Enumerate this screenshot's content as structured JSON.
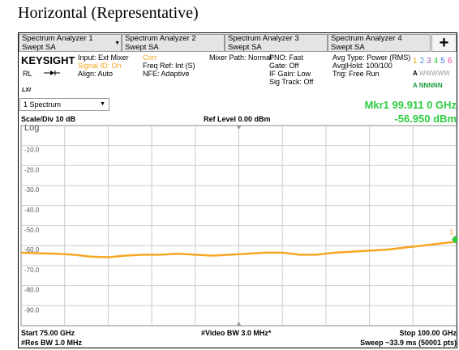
{
  "title": "Horizontal (Representative)",
  "tabs": [
    {
      "name": "Spectrum Analyzer 1",
      "mode": "Swept SA"
    },
    {
      "name": "Spectrum Analyzer 2",
      "mode": "Swept SA"
    },
    {
      "name": "Spectrum Analyzer 3",
      "mode": "Swept SA"
    },
    {
      "name": "Spectrum Analyzer 4",
      "mode": "Swept SA"
    }
  ],
  "plus": "+",
  "info": {
    "brand": "KEYSIGHT",
    "rl": "RL",
    "lxi": "LXI",
    "col1": [
      "Input: Ext Mixer",
      "Signal ID: On",
      "Align: Auto"
    ],
    "col2": [
      "Corr",
      "Freq Ref: Int (S)",
      "NFE: Adaptive"
    ],
    "col3": [
      "Mixer Path: Normal"
    ],
    "col4": [
      "PNO: Fast",
      "Gate: Off",
      "IF Gain: Low",
      "Sig Track: Off"
    ],
    "col5": [
      "Avg Type: Power (RMS)",
      "Avg|Hold: 100/100",
      "Trig: Free Run"
    ],
    "trace_numbers": [
      "1",
      "2",
      "3",
      "4",
      "5",
      "6"
    ],
    "trace_colors": [
      "#f5a623",
      "#4a90d9",
      "#9b59b6",
      "#2ecc40",
      "#3a7bd5",
      "#e84393"
    ],
    "trace_row1": [
      "A",
      "WWWWW"
    ],
    "trace_row2": [
      "A",
      "NNNNN"
    ]
  },
  "window": "1 Spectrum",
  "marker_readout": {
    "freq": "Mkr1  99.911 0 GHz",
    "level": "-56.950 dBm"
  },
  "scale": "Scale/Div 10 dB",
  "ref_level": "Ref Level 0.00 dBm",
  "log": "Log",
  "footer": {
    "start": "Start 75.00 GHz",
    "res_bw": "#Res BW 1.0 MHz",
    "video_bw": "#Video BW 3.0 MHz*",
    "stop": "Stop 100.00 GHz",
    "sweep": "Sweep ~33.9 ms (50001 pts)"
  },
  "chart_data": {
    "type": "line",
    "xlim": [
      75,
      100
    ],
    "ylim": [
      -100,
      0
    ],
    "yticks": [
      {
        "value": -10,
        "label": "-10.0"
      },
      {
        "value": -20,
        "label": "-20.0"
      },
      {
        "value": -30,
        "label": "-30.0"
      },
      {
        "value": -40,
        "label": "-40.0"
      },
      {
        "value": -50,
        "label": "-50.0"
      },
      {
        "value": -60,
        "label": "-60.0"
      },
      {
        "value": -70,
        "label": "-70.0"
      },
      {
        "value": -80,
        "label": "-80.0"
      },
      {
        "value": -90,
        "label": "-90.0"
      }
    ],
    "grid": true,
    "x": [
      75,
      76,
      77,
      78,
      79,
      80,
      81,
      82,
      83,
      84,
      85,
      86,
      87,
      88,
      89,
      90,
      91,
      92,
      93,
      94,
      95,
      96,
      97,
      98,
      99,
      100
    ],
    "series": [
      {
        "color": "#f5a623",
        "values": [
          -63.5,
          -63.8,
          -64,
          -64.5,
          -65.5,
          -65.8,
          -65,
          -64.5,
          -64.5,
          -64,
          -64.5,
          -65,
          -64.5,
          -64,
          -63.5,
          -63.5,
          -64.5,
          -64.5,
          -63.5,
          -63,
          -62.5,
          -62,
          -61,
          -60,
          -59,
          -58
        ]
      }
    ],
    "marker": {
      "label": "1",
      "x": 99.911,
      "y": -56.95,
      "color": "#2ecc40"
    }
  }
}
